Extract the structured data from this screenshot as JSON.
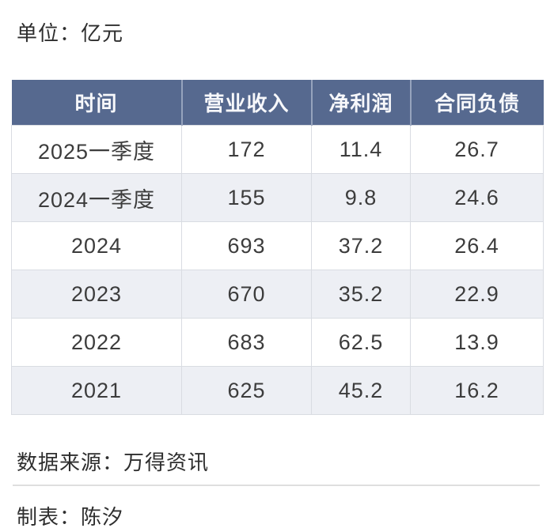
{
  "unit_label": "单位：亿元",
  "table": {
    "headers": [
      "时间",
      "营业收入",
      "净利润",
      "合同负债"
    ],
    "rows": [
      [
        "2025一季度",
        "172",
        "11.4",
        "26.7"
      ],
      [
        "2024一季度",
        "155",
        "9.8",
        "24.6"
      ],
      [
        "2024",
        "693",
        "37.2",
        "26.4"
      ],
      [
        "2023",
        "670",
        "35.2",
        "22.9"
      ],
      [
        "2022",
        "683",
        "62.5",
        "13.9"
      ],
      [
        "2021",
        "625",
        "45.2",
        "16.2"
      ]
    ]
  },
  "footer": {
    "source": "数据来源：万得资讯",
    "author": "制表：陈汐"
  },
  "colors": {
    "header_bg": "#56698f",
    "header_text": "#f7f8fb",
    "header_divider": "#96a3bd",
    "row_alt_bg": "#edeff4",
    "body_text": "#3c3c3c",
    "cell_border": "#d9dce2",
    "footer_divider": "#dedede"
  },
  "chart_data": {
    "type": "table",
    "title": "单位：亿元",
    "categories": [
      "2025一季度",
      "2024一季度",
      "2024",
      "2023",
      "2022",
      "2021"
    ],
    "series": [
      {
        "name": "营业收入",
        "values": [
          172,
          155,
          693,
          670,
          683,
          625
        ]
      },
      {
        "name": "净利润",
        "values": [
          11.4,
          9.8,
          37.2,
          35.2,
          62.5,
          45.2
        ]
      },
      {
        "name": "合同负债",
        "values": [
          26.7,
          24.6,
          26.4,
          22.9,
          13.9,
          16.2
        ]
      }
    ],
    "unit": "亿元",
    "source": "数据来源：万得资讯",
    "author": "制表：陈汐",
    "legend_position": "none",
    "grid": "on"
  }
}
